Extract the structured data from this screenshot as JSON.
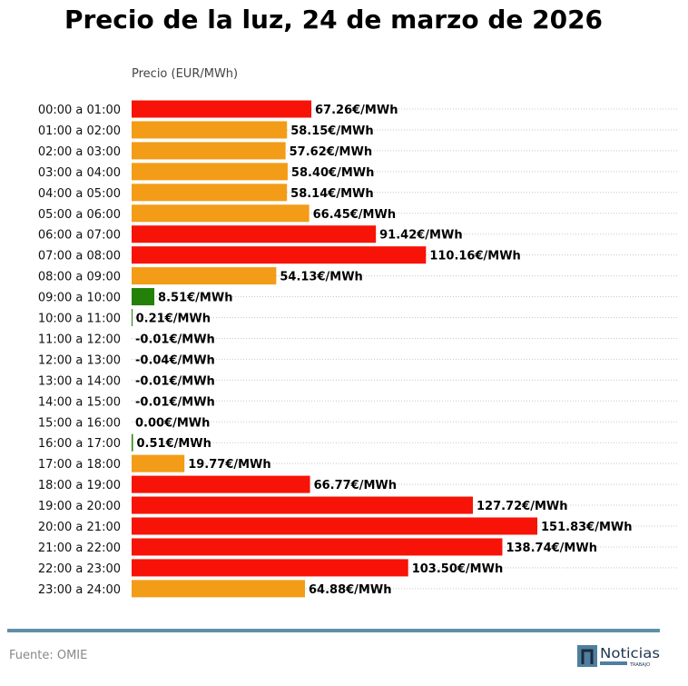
{
  "chart_data": {
    "type": "bar",
    "orientation": "horizontal",
    "title": "Precio de la luz, 24 de marzo de 2026",
    "xlabel": "Precio (EUR/MWh)",
    "ylabel": "",
    "unit_suffix": "€/MWh",
    "grid": "horizontal-dotted",
    "categories": [
      "00:00 a 01:00",
      "01:00 a 02:00",
      "02:00 a 03:00",
      "03:00 a 04:00",
      "04:00 a 05:00",
      "05:00 a 06:00",
      "06:00 a 07:00",
      "07:00 a 08:00",
      "08:00 a 09:00",
      "09:00 a 10:00",
      "10:00 a 11:00",
      "11:00 a 12:00",
      "12:00 a 13:00",
      "13:00 a 14:00",
      "14:00 a 15:00",
      "15:00 a 16:00",
      "16:00 a 17:00",
      "17:00 a 18:00",
      "18:00 a 19:00",
      "19:00 a 20:00",
      "20:00 a 21:00",
      "21:00 a 22:00",
      "22:00 a 23:00",
      "23:00 a 24:00"
    ],
    "values": [
      67.26,
      58.15,
      57.62,
      58.4,
      58.14,
      66.45,
      91.42,
      110.16,
      54.13,
      8.51,
      0.21,
      -0.01,
      -0.04,
      -0.01,
      -0.01,
      0.0,
      0.51,
      19.77,
      66.77,
      127.72,
      151.83,
      138.74,
      103.5,
      64.88
    ],
    "labels": [
      "67.26€/MWh",
      "58.15€/MWh",
      "57.62€/MWh",
      "58.40€/MWh",
      "58.14€/MWh",
      "66.45€/MWh",
      "91.42€/MWh",
      "110.16€/MWh",
      "54.13€/MWh",
      "8.51€/MWh",
      "0.21€/MWh",
      "-0.01€/MWh",
      "-0.04€/MWh",
      "-0.01€/MWh",
      "-0.01€/MWh",
      "0.00€/MWh",
      "0.51€/MWh",
      "19.77€/MWh",
      "66.77€/MWh",
      "127.72€/MWh",
      "151.83€/MWh",
      "138.74€/MWh",
      "103.50€/MWh",
      "64.88€/MWh"
    ],
    "colors": [
      "#f71307",
      "#f39c17",
      "#f39c17",
      "#f39c17",
      "#f39c17",
      "#f39c17",
      "#f71307",
      "#f71307",
      "#f39c17",
      "#238009",
      "#238009",
      "#238009",
      "#238009",
      "#238009",
      "#238009",
      "#238009",
      "#238009",
      "#f39c17",
      "#f71307",
      "#f71307",
      "#f71307",
      "#f71307",
      "#f71307",
      "#f39c17"
    ],
    "xlim": [
      0,
      155
    ]
  },
  "footer": {
    "source": "Fuente: OMIE",
    "logo_text": "Noticias",
    "logo_subtext": "TRABAJO"
  },
  "colors": {
    "rule": "#5f8fa8",
    "logo": "#4f7fa0"
  }
}
